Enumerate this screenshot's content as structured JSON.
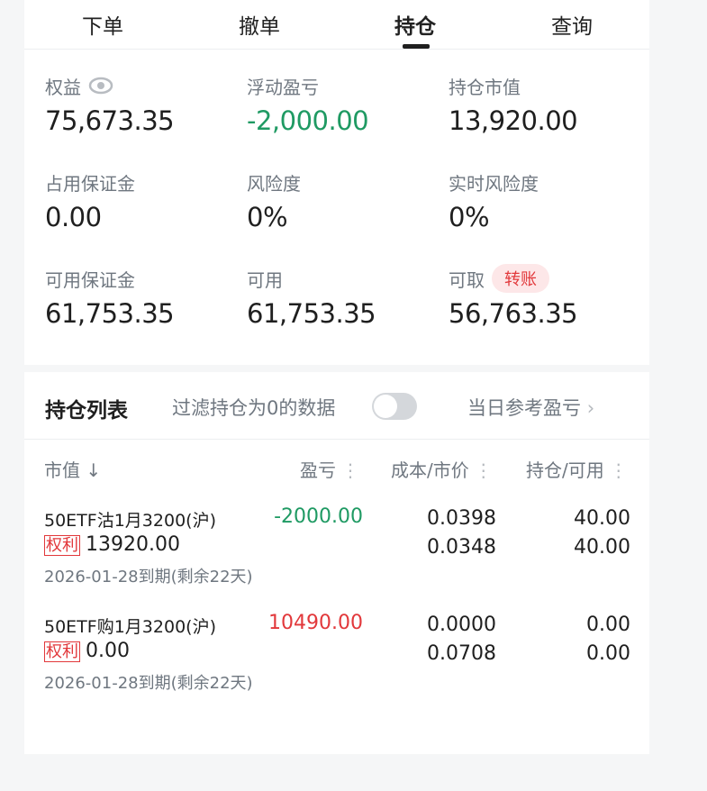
{
  "tabs": [
    {
      "label": "下单"
    },
    {
      "label": "撤单"
    },
    {
      "label": "持仓",
      "active": true
    },
    {
      "label": "查询"
    }
  ],
  "stats": [
    {
      "label": "权益",
      "value": "75,673.35",
      "icon": "eye-icon"
    },
    {
      "label": "浮动盈亏",
      "value": "-2,000.00",
      "color": "#1f9a63"
    },
    {
      "label": "持仓市值",
      "value": "13,920.00"
    },
    {
      "label": "占用保证金",
      "value": "0.00"
    },
    {
      "label": "风险度",
      "value": "0%"
    },
    {
      "label": "实时风险度",
      "value": "0%"
    },
    {
      "label": "可用保证金",
      "value": "61,753.35"
    },
    {
      "label": "可用",
      "value": "61,753.35"
    },
    {
      "label": "可取",
      "value": "56,763.35",
      "badge": "转账"
    }
  ],
  "list": {
    "title": "持仓列表",
    "filter_label": "过滤持仓为0的数据",
    "filter_on": false,
    "ref_pnl": "当日参考盈亏",
    "columns": [
      "市值",
      "盈亏",
      "成本/市价",
      "持仓/可用"
    ],
    "sort_arrow": "↓",
    "rows": [
      {
        "name": "50ETF沽1月3200(沪)",
        "tag": "权利",
        "market_value": "13920.00",
        "expiry": "2026-01-28到期(剩余22天)",
        "pnl": "-2000.00",
        "pnl_color": "#1f9a63",
        "cost": "0.0398",
        "price": "0.0348",
        "position": "40.00",
        "available": "40.00"
      },
      {
        "name": "50ETF购1月3200(沪)",
        "tag": "权利",
        "market_value": "0.00",
        "expiry": "2026-01-28到期(剩余22天)",
        "pnl": "10490.00",
        "pnl_color": "#e2383b",
        "cost": "0.0000",
        "price": "0.0708",
        "position": "0.00",
        "available": "0.00"
      }
    ]
  }
}
